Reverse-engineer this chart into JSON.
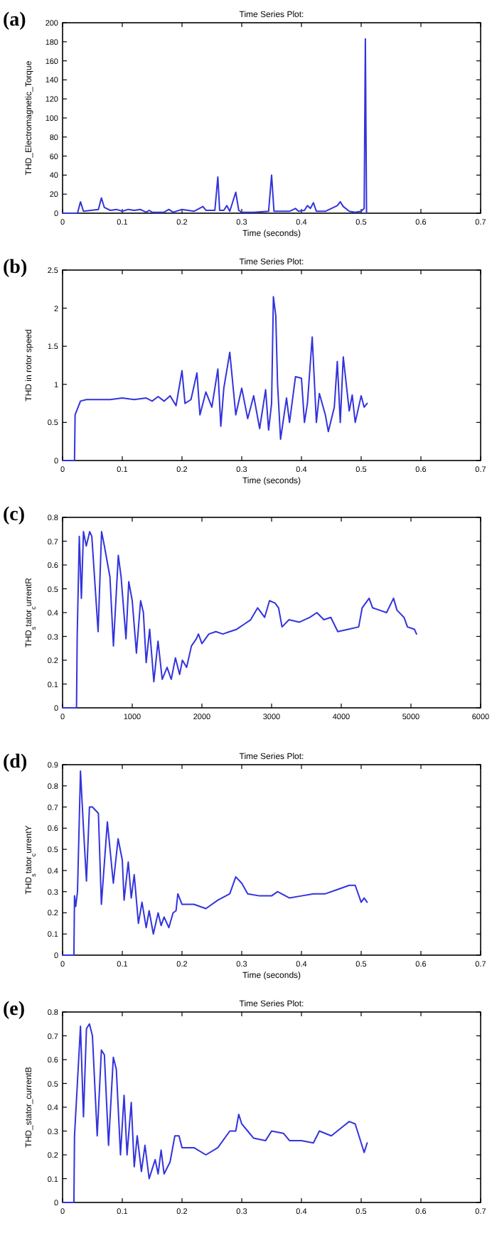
{
  "chart_data": [
    {
      "type": "line",
      "title": "Time Series Plot:",
      "xlabel": "Time (seconds)",
      "ylabel": "THD_Electromagnetic_Torque",
      "annotations": [
        "(a)"
      ],
      "xlim": [
        0,
        0.7
      ],
      "xticks": [
        0,
        0.1,
        0.2,
        0.3,
        0.4,
        0.5,
        0.6,
        0.7
      ],
      "ylim": [
        0,
        200
      ],
      "yticks": [
        0,
        20,
        40,
        60,
        80,
        100,
        120,
        140,
        160,
        180,
        200
      ],
      "series": [
        {
          "color": "#3333dd",
          "x": [
            0,
            0.025,
            0.03,
            0.035,
            0.06,
            0.065,
            0.07,
            0.08,
            0.09,
            0.1,
            0.11,
            0.12,
            0.13,
            0.14,
            0.145,
            0.15,
            0.17,
            0.178,
            0.185,
            0.2,
            0.21,
            0.22,
            0.235,
            0.24,
            0.255,
            0.26,
            0.263,
            0.27,
            0.275,
            0.28,
            0.29,
            0.295,
            0.3,
            0.32,
            0.345,
            0.35,
            0.354,
            0.38,
            0.39,
            0.395,
            0.405,
            0.41,
            0.415,
            0.42,
            0.425,
            0.44,
            0.46,
            0.465,
            0.47,
            0.48,
            0.49,
            0.5,
            0.505,
            0.507,
            0.509
          ],
          "values": [
            0,
            0,
            12,
            2,
            4,
            16,
            6,
            3,
            4,
            2,
            4,
            3,
            4,
            1,
            3,
            1,
            1,
            4,
            1,
            4,
            3,
            2,
            7,
            3,
            3,
            38,
            3,
            3,
            8,
            2,
            22,
            3,
            1,
            1,
            2,
            40,
            2,
            2,
            5,
            2,
            3,
            8,
            5,
            11,
            2,
            2,
            8,
            12,
            7,
            2,
            1,
            2,
            5,
            183,
            0
          ]
        }
      ]
    },
    {
      "type": "line",
      "title": "Time Series Plot:",
      "xlabel": "Time (seconds)",
      "ylabel": "THD in rotor speed",
      "annotations": [
        "(b)"
      ],
      "xlim": [
        0,
        0.7
      ],
      "xticks": [
        0,
        0.1,
        0.2,
        0.3,
        0.4,
        0.5,
        0.6,
        0.7
      ],
      "ylim": [
        0,
        2.5
      ],
      "yticks": [
        0,
        0.5,
        1,
        1.5,
        2,
        2.5
      ],
      "series": [
        {
          "color": "#3333dd",
          "x": [
            0,
            0.02,
            0.021,
            0.03,
            0.04,
            0.08,
            0.1,
            0.12,
            0.14,
            0.15,
            0.16,
            0.17,
            0.18,
            0.19,
            0.2,
            0.205,
            0.215,
            0.225,
            0.23,
            0.24,
            0.25,
            0.26,
            0.265,
            0.27,
            0.28,
            0.29,
            0.3,
            0.31,
            0.32,
            0.33,
            0.34,
            0.345,
            0.35,
            0.353,
            0.357,
            0.36,
            0.365,
            0.375,
            0.38,
            0.39,
            0.4,
            0.405,
            0.41,
            0.418,
            0.425,
            0.43,
            0.44,
            0.445,
            0.455,
            0.46,
            0.465,
            0.47,
            0.48,
            0.485,
            0.49,
            0.5,
            0.505,
            0.51
          ],
          "values": [
            0,
            0,
            0.6,
            0.78,
            0.8,
            0.8,
            0.82,
            0.8,
            0.82,
            0.78,
            0.84,
            0.78,
            0.85,
            0.72,
            1.18,
            0.75,
            0.8,
            1.15,
            0.6,
            0.9,
            0.7,
            1.2,
            0.45,
            0.95,
            1.42,
            0.6,
            0.95,
            0.55,
            0.85,
            0.42,
            0.93,
            0.4,
            0.75,
            2.15,
            1.9,
            1.0,
            0.28,
            0.82,
            0.5,
            1.1,
            1.08,
            0.5,
            0.75,
            1.62,
            0.5,
            0.88,
            0.6,
            0.38,
            0.7,
            1.3,
            0.5,
            1.36,
            0.65,
            0.86,
            0.5,
            0.85,
            0.7,
            0.75
          ]
        }
      ]
    },
    {
      "type": "line",
      "ylabel": "THD$_{s}$tator$_{c}$urrentR",
      "annotations": [
        "(c)"
      ],
      "xlim": [
        0,
        6000
      ],
      "xticks": [
        0,
        1000,
        2000,
        3000,
        4000,
        5000,
        6000
      ],
      "ylim": [
        0,
        0.8
      ],
      "yticks": [
        0,
        0.1,
        0.2,
        0.3,
        0.4,
        0.5,
        0.6,
        0.7,
        0.8
      ],
      "series": [
        {
          "color": "#3333dd",
          "x": [
            0,
            200,
            210,
            240,
            270,
            300,
            340,
            390,
            420,
            510,
            560,
            600,
            680,
            730,
            800,
            840,
            910,
            950,
            1000,
            1060,
            1120,
            1160,
            1200,
            1250,
            1310,
            1370,
            1430,
            1500,
            1560,
            1620,
            1680,
            1720,
            1780,
            1850,
            1920,
            1950,
            2000,
            2100,
            2200,
            2300,
            2400,
            2500,
            2600,
            2700,
            2800,
            2900,
            2970,
            3050,
            3100,
            3150,
            3250,
            3400,
            3550,
            3650,
            3750,
            3850,
            3950,
            4100,
            4250,
            4300,
            4400,
            4450,
            4550,
            4650,
            4750,
            4800,
            4900,
            4950,
            5050,
            5080
          ],
          "values": [
            0,
            0,
            0.3,
            0.72,
            0.46,
            0.74,
            0.68,
            0.74,
            0.72,
            0.32,
            0.74,
            0.68,
            0.55,
            0.26,
            0.64,
            0.55,
            0.29,
            0.53,
            0.45,
            0.23,
            0.45,
            0.4,
            0.19,
            0.33,
            0.11,
            0.28,
            0.12,
            0.17,
            0.12,
            0.21,
            0.14,
            0.2,
            0.17,
            0.26,
            0.29,
            0.31,
            0.27,
            0.31,
            0.32,
            0.31,
            0.32,
            0.33,
            0.35,
            0.37,
            0.42,
            0.38,
            0.45,
            0.44,
            0.42,
            0.34,
            0.37,
            0.36,
            0.38,
            0.4,
            0.37,
            0.38,
            0.32,
            0.33,
            0.34,
            0.42,
            0.46,
            0.42,
            0.41,
            0.4,
            0.46,
            0.41,
            0.38,
            0.34,
            0.33,
            0.31
          ]
        }
      ]
    },
    {
      "type": "line",
      "title": "Time Series Plot:",
      "xlabel": "Time (seconds)",
      "ylabel": "THD$_{s}$tator$_{c}$urrentY",
      "annotations": [
        "(d)"
      ],
      "xlim": [
        0,
        0.7
      ],
      "xticks": [
        0,
        0.1,
        0.2,
        0.3,
        0.4,
        0.5,
        0.6,
        0.7
      ],
      "ylim": [
        0,
        0.9
      ],
      "yticks": [
        0,
        0.1,
        0.2,
        0.3,
        0.4,
        0.5,
        0.6,
        0.7,
        0.8,
        0.9
      ],
      "series": [
        {
          "color": "#3333dd",
          "x": [
            0,
            0.019,
            0.02,
            0.022,
            0.025,
            0.03,
            0.035,
            0.04,
            0.045,
            0.05,
            0.06,
            0.065,
            0.075,
            0.085,
            0.093,
            0.1,
            0.103,
            0.11,
            0.115,
            0.12,
            0.127,
            0.133,
            0.14,
            0.145,
            0.152,
            0.16,
            0.165,
            0.17,
            0.178,
            0.185,
            0.19,
            0.193,
            0.2,
            0.22,
            0.24,
            0.26,
            0.28,
            0.29,
            0.3,
            0.31,
            0.33,
            0.35,
            0.36,
            0.38,
            0.4,
            0.42,
            0.44,
            0.46,
            0.47,
            0.48,
            0.49,
            0.5,
            0.505,
            0.51
          ],
          "values": [
            0,
            0,
            0.28,
            0.23,
            0.3,
            0.87,
            0.6,
            0.35,
            0.7,
            0.7,
            0.67,
            0.24,
            0.63,
            0.34,
            0.55,
            0.45,
            0.26,
            0.44,
            0.27,
            0.38,
            0.15,
            0.25,
            0.13,
            0.21,
            0.1,
            0.2,
            0.14,
            0.18,
            0.13,
            0.2,
            0.21,
            0.29,
            0.24,
            0.24,
            0.22,
            0.26,
            0.29,
            0.37,
            0.34,
            0.29,
            0.28,
            0.28,
            0.3,
            0.27,
            0.28,
            0.29,
            0.29,
            0.31,
            0.32,
            0.33,
            0.33,
            0.25,
            0.27,
            0.25
          ]
        }
      ]
    },
    {
      "type": "line",
      "title": "Time Series Plot:",
      "ylabel": "THD_stator_currentB",
      "annotations": [
        "(e)"
      ],
      "xlim": [
        0,
        0.7
      ],
      "xticks": [
        0,
        0.1,
        0.2,
        0.3,
        0.4,
        0.5,
        0.6,
        0.7
      ],
      "ylim": [
        0,
        0.8
      ],
      "yticks": [
        0,
        0.1,
        0.2,
        0.3,
        0.4,
        0.5,
        0.6,
        0.7,
        0.8
      ],
      "series": [
        {
          "color": "#3333dd",
          "x": [
            0,
            0.019,
            0.02,
            0.03,
            0.035,
            0.04,
            0.045,
            0.05,
            0.058,
            0.065,
            0.07,
            0.077,
            0.085,
            0.09,
            0.097,
            0.103,
            0.108,
            0.115,
            0.12,
            0.125,
            0.132,
            0.138,
            0.145,
            0.15,
            0.155,
            0.16,
            0.165,
            0.17,
            0.18,
            0.188,
            0.195,
            0.2,
            0.22,
            0.24,
            0.26,
            0.28,
            0.29,
            0.295,
            0.3,
            0.31,
            0.32,
            0.34,
            0.35,
            0.37,
            0.38,
            0.4,
            0.42,
            0.43,
            0.45,
            0.46,
            0.47,
            0.48,
            0.49,
            0.5,
            0.505,
            0.51
          ],
          "values": [
            0,
            0,
            0.28,
            0.74,
            0.36,
            0.73,
            0.75,
            0.7,
            0.28,
            0.64,
            0.62,
            0.24,
            0.61,
            0.56,
            0.2,
            0.45,
            0.2,
            0.42,
            0.15,
            0.28,
            0.13,
            0.24,
            0.1,
            0.14,
            0.18,
            0.12,
            0.22,
            0.12,
            0.17,
            0.28,
            0.28,
            0.23,
            0.23,
            0.2,
            0.23,
            0.3,
            0.3,
            0.37,
            0.33,
            0.3,
            0.27,
            0.26,
            0.3,
            0.29,
            0.26,
            0.26,
            0.25,
            0.3,
            0.28,
            0.3,
            0.32,
            0.34,
            0.33,
            0.25,
            0.21,
            0.25
          ]
        }
      ]
    }
  ]
}
